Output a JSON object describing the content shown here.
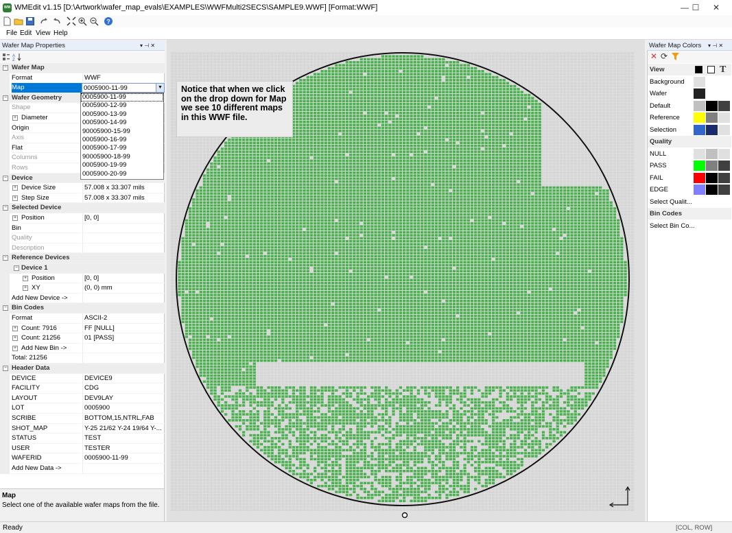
{
  "window": {
    "title": "WMEdit v1.15 [D:\\Artwork\\wafer_map_evals\\EXAMPLES\\WWFMulti2SECS\\SAMPLE9.WWF] [Format:WWF]",
    "logo_text": "WM",
    "minimize": "—",
    "maximize": "☐",
    "close": "✕"
  },
  "menu": {
    "file": "File",
    "edit": "Edit",
    "view": "View",
    "help": "Help"
  },
  "panels": {
    "properties_title": "Wafer Map Properties",
    "colors_title": "Wafer Map Colors",
    "pin": "▾ ⊣ ✕"
  },
  "props": {
    "rows": [
      {
        "type": "cat",
        "name": "Wafer Map",
        "toggle": "−"
      },
      {
        "name": "Format",
        "value": "WWF"
      },
      {
        "name": "Map",
        "value": "",
        "selected": true
      },
      {
        "type": "cat",
        "name": "Wafer Geometry",
        "toggle": "−"
      },
      {
        "name": "Shape",
        "value": "",
        "dim": true
      },
      {
        "name": "Diameter",
        "value": "",
        "toggle": "+"
      },
      {
        "name": "Origin",
        "value": ""
      },
      {
        "name": "Axis",
        "value": "",
        "dim": true
      },
      {
        "name": "Flat",
        "value": ""
      },
      {
        "name": "Columns",
        "value": "",
        "dim": true
      },
      {
        "name": "Rows",
        "value": "",
        "dim": true
      },
      {
        "type": "cat",
        "name": "Device",
        "toggle": "−"
      },
      {
        "name": "Device Size",
        "value": "57.008 x 33.307 mils",
        "toggle": "+"
      },
      {
        "name": "Step Size",
        "value": "57.008 x 33.307 mils",
        "toggle": "+"
      },
      {
        "type": "cat",
        "name": "Selected Device",
        "toggle": "−"
      },
      {
        "name": "Position",
        "value": "[0, 0]",
        "toggle": "+"
      },
      {
        "name": "Bin",
        "value": ""
      },
      {
        "name": "Quality",
        "value": "",
        "dim": true
      },
      {
        "name": "Description",
        "value": "",
        "dim": true
      },
      {
        "type": "cat",
        "name": "Reference Devices",
        "toggle": "−"
      },
      {
        "type": "sub",
        "name": "Device 1",
        "toggle": "−"
      },
      {
        "name": "Position",
        "value": "[0, 0]",
        "toggle": "+",
        "indent": 2
      },
      {
        "name": "XY",
        "value": "(0, 0) mm",
        "toggle": "+",
        "indent": 2
      },
      {
        "name": "Add New Device ->",
        "value": ""
      },
      {
        "type": "cat",
        "name": "Bin Codes",
        "toggle": "−"
      },
      {
        "name": "Format",
        "value": "ASCII-2"
      },
      {
        "name": "Count: 7916",
        "value": "FF [NULL]",
        "toggle": "+"
      },
      {
        "name": "Count: 21256",
        "value": "01 [PASS]",
        "toggle": "+"
      },
      {
        "name": "Add New Bin ->",
        "value": "",
        "toggle": "+"
      },
      {
        "name": "Total: 21256",
        "value": ""
      },
      {
        "type": "cat",
        "name": "Header Data",
        "toggle": "−"
      },
      {
        "name": "DEVICE",
        "value": "DEVICE9"
      },
      {
        "name": "FACILITY",
        "value": "CDG"
      },
      {
        "name": "LAYOUT",
        "value": "DEV9LAY"
      },
      {
        "name": "LOT",
        "value": "0005900"
      },
      {
        "name": "SCRIBE",
        "value": "BOTTOM,15,NTRL,FAB"
      },
      {
        "name": "SHOT_MAP",
        "value": "Y-25 21/62 Y-24 19/64 Y-..."
      },
      {
        "name": "STATUS",
        "value": "TEST"
      },
      {
        "name": "USER",
        "value": "TESTER"
      },
      {
        "name": "WAFERID",
        "value": "0005900-11-99"
      },
      {
        "name": "Add New Data ->",
        "value": ""
      }
    ]
  },
  "map_combo": {
    "value": "0005900-11-99",
    "options": [
      "0005900-11-99",
      "0005900-12-99",
      "0005900-13-99",
      "0005900-14-99",
      "90005900-15-99",
      "0005900-16-99",
      "0005900-17-99",
      "90005900-18-99",
      "0005900-19-99",
      "0005900-20-99"
    ]
  },
  "description": {
    "title": "Map",
    "text": "Select one of the available wafer maps from the file."
  },
  "callout": {
    "text": "Notice that when we click on the drop down for Map we see 10 different maps in this WWF file."
  },
  "colors": {
    "rows": [
      {
        "type": "cat",
        "name": "View",
        "swatches": [
          "#000000",
          "#ffffff",
          "T"
        ]
      },
      {
        "name": "Background",
        "swatches": [
          "#e0e0e0"
        ]
      },
      {
        "name": "Wafer",
        "swatches": [
          "#222222"
        ]
      },
      {
        "name": "Default",
        "swatches": [
          "#c0c0c0",
          "#000000",
          "#404040"
        ]
      },
      {
        "name": "Reference",
        "swatches": [
          "#ffff00",
          "#808080",
          "#e0e0e0"
        ]
      },
      {
        "name": "Selection",
        "swatches": [
          "#3366cc",
          "#1a2a6c",
          "#e0e0e0"
        ]
      },
      {
        "type": "cat",
        "name": "Quality",
        "swatches": []
      },
      {
        "name": "NULL",
        "swatches": [
          "#e0e0e0",
          "#c0c0c0",
          "#e0e0e0"
        ]
      },
      {
        "name": "PASS",
        "swatches": [
          "#00ff00",
          "#808080",
          "#404040"
        ]
      },
      {
        "name": "FAIL",
        "swatches": [
          "#ff0000",
          "#000000",
          "#404040"
        ]
      },
      {
        "name": "EDGE",
        "swatches": [
          "#8080ff",
          "#000000",
          "#404040"
        ]
      },
      {
        "name": "Select Qualit...",
        "swatches": []
      },
      {
        "type": "cat",
        "name": "Bin Codes",
        "swatches": []
      },
      {
        "name": "Select Bin Co...",
        "swatches": []
      }
    ]
  },
  "status": {
    "text": "Ready",
    "coord": "[COL, ROW]"
  },
  "colors_theme": {
    "pass": "#4caf50",
    "null": "#d6d6d6",
    "accent": "#0078d7"
  }
}
